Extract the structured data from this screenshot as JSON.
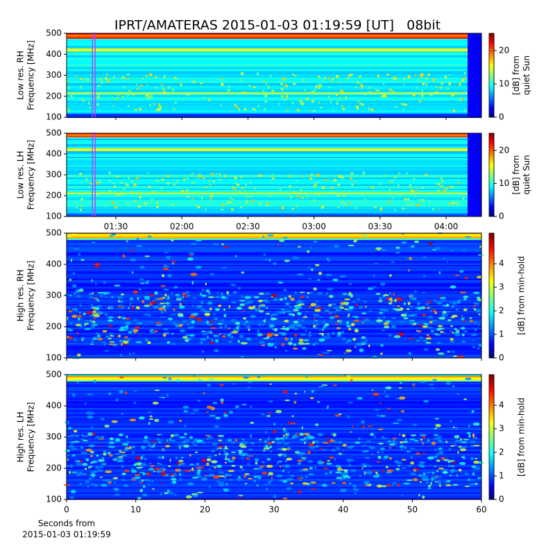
{
  "chart_data": [
    {
      "type": "heatmap",
      "title": "IPRT/AMATERAS 2015-01-03 01:19:59 [UT]   08bit",
      "ylabel": [
        "Low res. RH",
        "Frequency [MHz]"
      ],
      "ylim": [
        100,
        500
      ],
      "yticks": [
        100,
        200,
        300,
        400,
        500
      ],
      "colorbar_label": [
        "[dB] from",
        "quiet Sun"
      ],
      "clim": [
        0,
        25.2
      ],
      "cticks": [
        0,
        10,
        20
      ],
      "marker_color": "#c040ff",
      "marker_x": 80
    },
    {
      "type": "heatmap",
      "ylabel": [
        "Low res. LH",
        "Frequency [MHz]"
      ],
      "ylim": [
        100,
        500
      ],
      "yticks": [
        100,
        200,
        300,
        400,
        500
      ],
      "colorbar_label": [
        "[dB] from",
        "quiet Sun"
      ],
      "clim": [
        0,
        25.2
      ],
      "cticks": [
        0,
        10,
        20
      ],
      "marker_color": "#c040ff",
      "marker_x": 80,
      "xlim": [
        67.65,
        256.05
      ],
      "xticks": [
        {
          "value": 90,
          "label": "01:30"
        },
        {
          "value": 120,
          "label": "02:00"
        },
        {
          "value": 150,
          "label": "02:30"
        },
        {
          "value": 180,
          "label": "03:00"
        },
        {
          "value": 210,
          "label": "03:30"
        },
        {
          "value": 240,
          "label": "04:00"
        }
      ]
    },
    {
      "type": "heatmap",
      "ylabel": [
        "High res. RH",
        "Frequency [MHz]"
      ],
      "ylim": [
        100,
        500
      ],
      "yticks": [
        100,
        200,
        300,
        400,
        500
      ],
      "colorbar_label": [
        "[dB] from min-hold"
      ],
      "clim": [
        0,
        5.3
      ],
      "cticks": [
        0,
        1,
        2,
        3,
        4
      ]
    },
    {
      "type": "heatmap",
      "ylabel": [
        "High res. LH",
        "Frequency [MHz]"
      ],
      "ylim": [
        100,
        500
      ],
      "yticks": [
        100,
        200,
        300,
        400,
        500
      ],
      "colorbar_label": [
        "[dB] from min-hold"
      ],
      "clim": [
        0,
        5.3
      ],
      "cticks": [
        0,
        1,
        2,
        3,
        4
      ],
      "xlim": [
        0,
        60
      ],
      "xticks": [
        0,
        10,
        20,
        30,
        40,
        50,
        60
      ],
      "xlabel": [
        "Seconds from",
        "2015-01-03 01:19:59"
      ]
    }
  ]
}
